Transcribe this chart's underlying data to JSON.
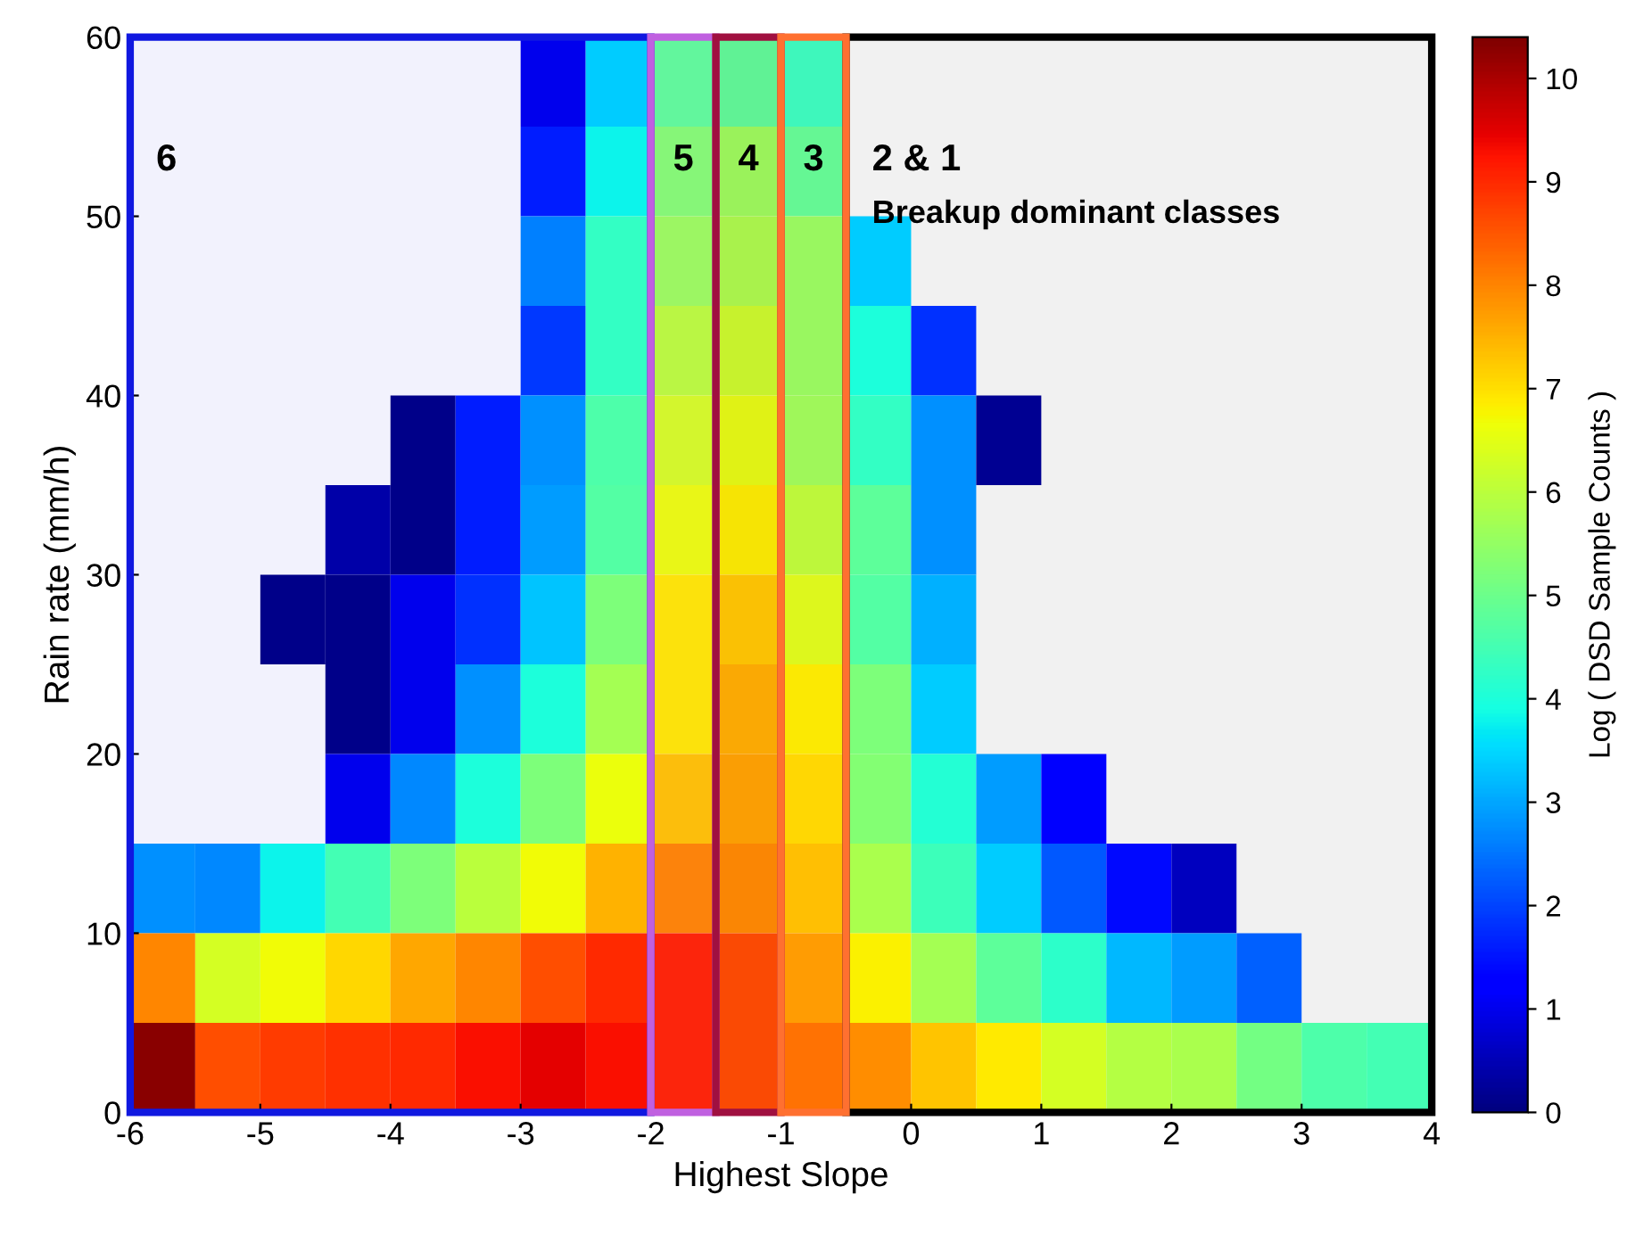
{
  "chart_data": {
    "type": "heatmap",
    "xlabel": "Highest Slope",
    "ylabel": "Rain rate (mm/h)",
    "clabel": "Log ( DSD Sample Counts )",
    "x": [
      -5.75,
      -5.25,
      -4.75,
      -4.25,
      -3.75,
      -3.25,
      -2.75,
      -2.25,
      -1.75,
      -1.25,
      -0.75,
      -0.25,
      0.25,
      0.75,
      1.25,
      1.75,
      2.25,
      2.75,
      3.25,
      3.75
    ],
    "y": [
      57.5,
      52.5,
      47.5,
      42.5,
      37.5,
      32.5,
      27.5,
      22.5,
      17.5,
      12.5,
      7.5,
      2.5
    ],
    "xlim": [
      -6,
      4
    ],
    "ylim": [
      0,
      60
    ],
    "xticks": [
      -6,
      -5,
      -4,
      -3,
      -2,
      -1,
      0,
      1,
      2,
      3,
      4
    ],
    "yticks": [
      0,
      10,
      20,
      30,
      40,
      50,
      60
    ],
    "clim": [
      0,
      10.4
    ],
    "cticks": [
      0,
      1,
      2,
      3,
      4,
      5,
      6,
      7,
      8,
      9,
      10
    ],
    "cells": [
      [
        null,
        null,
        null,
        null,
        null,
        null,
        1.0,
        3.4,
        4.8,
        4.8,
        4.3,
        null,
        null,
        null,
        null,
        null,
        null,
        null,
        null,
        null
      ],
      [
        null,
        null,
        null,
        null,
        null,
        null,
        1.6,
        3.8,
        5.3,
        5.6,
        4.8,
        null,
        null,
        null,
        null,
        null,
        null,
        null,
        null,
        null
      ],
      [
        null,
        null,
        null,
        null,
        null,
        null,
        2.6,
        4.3,
        5.6,
        5.8,
        5.5,
        3.4,
        null,
        null,
        null,
        null,
        null,
        null,
        null,
        null
      ],
      [
        null,
        null,
        null,
        null,
        null,
        null,
        1.9,
        4.3,
        6.0,
        6.2,
        5.5,
        4.0,
        1.8,
        null,
        null,
        null,
        null,
        null,
        null,
        null
      ],
      [
        null,
        null,
        null,
        null,
        0.1,
        1.6,
        2.8,
        4.6,
        6.3,
        6.5,
        5.6,
        4.3,
        2.8,
        0.2,
        null,
        null,
        null,
        null,
        null,
        null
      ],
      [
        null,
        null,
        null,
        0.4,
        0.1,
        1.6,
        2.9,
        4.7,
        6.6,
        6.8,
        6.0,
        4.8,
        2.8,
        null,
        null,
        null,
        null,
        null,
        null,
        null
      ],
      [
        null,
        null,
        0.1,
        0.1,
        1.0,
        1.8,
        3.3,
        5.2,
        6.9,
        7.2,
        6.4,
        4.7,
        3.1,
        null,
        null,
        null,
        null,
        null,
        null,
        null
      ],
      [
        null,
        null,
        null,
        0.1,
        1.0,
        2.8,
        4.0,
        5.7,
        6.9,
        7.5,
        6.8,
        5.2,
        3.4,
        null,
        null,
        null,
        null,
        null,
        null,
        null
      ],
      [
        null,
        null,
        null,
        1.0,
        2.7,
        4.0,
        5.2,
        6.6,
        7.3,
        7.6,
        7.0,
        5.3,
        4.1,
        2.9,
        1.3,
        null,
        null,
        null,
        null,
        null
      ],
      [
        2.8,
        2.7,
        3.8,
        4.5,
        5.2,
        6.0,
        6.7,
        7.5,
        8.0,
        7.9,
        7.3,
        5.8,
        4.4,
        3.4,
        2.2,
        1.4,
        0.6,
        null,
        null,
        null
      ],
      [
        8.0,
        6.3,
        6.7,
        7.1,
        7.6,
        8.0,
        8.6,
        9.0,
        9.1,
        8.6,
        7.7,
        6.8,
        5.7,
        4.8,
        4.2,
        3.2,
        2.9,
        2.3,
        null,
        null
      ],
      [
        10.3,
        8.6,
        8.8,
        8.9,
        9.0,
        9.3,
        9.5,
        9.3,
        9.1,
        8.6,
        8.2,
        7.9,
        7.3,
        6.9,
        6.3,
        5.9,
        5.8,
        5.1,
        4.6,
        4.5
      ]
    ],
    "bands": [
      {
        "axis": "x",
        "from": -6,
        "to": -2,
        "label": "6",
        "color": "#1018e0"
      },
      {
        "axis": "x",
        "from": -2,
        "to": -1.5,
        "label": "5",
        "color": "#c060e0"
      },
      {
        "axis": "x",
        "from": -1.5,
        "to": -1,
        "label": "4",
        "color": "#a01040"
      },
      {
        "axis": "x",
        "from": -1,
        "to": -0.5,
        "label": "3",
        "color": "#ff7030"
      },
      {
        "axis": "x",
        "from": -0.5,
        "to": 4,
        "label": "2 & 1",
        "color": "#000000"
      }
    ],
    "annotations": [
      "Breakup dominant classes"
    ],
    "grid": false
  }
}
